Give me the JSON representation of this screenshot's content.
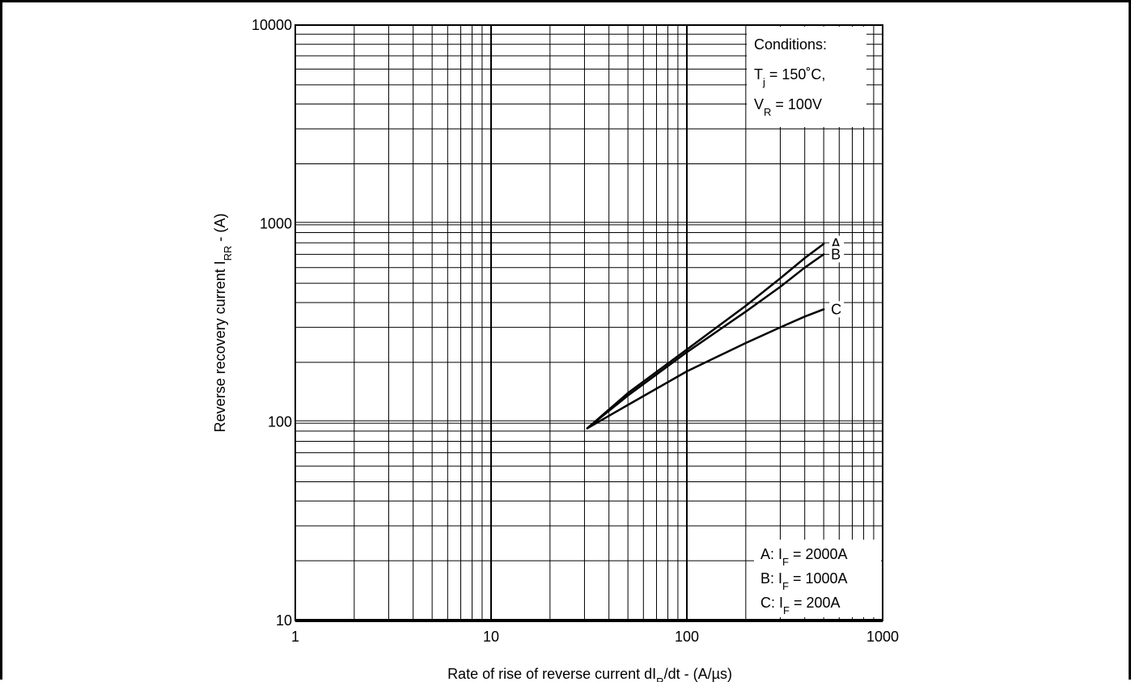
{
  "chart_data": {
    "type": "line",
    "x_scale": "log",
    "y_scale": "log",
    "xlim": [
      1,
      1000
    ],
    "ylim": [
      10,
      10000
    ],
    "grid": true,
    "xlabel": {
      "main": "Rate of rise of reverse current dI",
      "sub": "R",
      "suffix": "/dt - (A/µs)"
    },
    "ylabel": {
      "main": "Reverse recovery current I",
      "sub": "RR",
      "suffix": " - (A)"
    },
    "x_ticks": [
      {
        "value": 1,
        "label": "1"
      },
      {
        "value": 10,
        "label": "10"
      },
      {
        "value": 100,
        "label": "100"
      },
      {
        "value": 1000,
        "label": "1000"
      }
    ],
    "y_ticks": [
      {
        "value": 10,
        "label": "10"
      },
      {
        "value": 100,
        "label": "100"
      },
      {
        "value": 1000,
        "label": "1000"
      },
      {
        "value": 10000,
        "label": "10000"
      }
    ],
    "conditions": [
      {
        "main": "Conditions:",
        "sub": "",
        "suffix": ""
      },
      {
        "main": "T",
        "sub": "j",
        "suffix": " = 150˚C,"
      },
      {
        "main": "V",
        "sub": "R",
        "suffix": " = 100V"
      }
    ],
    "legend": [
      {
        "main": "A: I",
        "sub": "F",
        "suffix": " = 2000A"
      },
      {
        "main": "B: I",
        "sub": "F",
        "suffix": " = 1000A"
      },
      {
        "main": "C: I",
        "sub": "F",
        "suffix": " = 200A"
      }
    ],
    "legend_position": "bottom-right",
    "conditions_position": "top-right",
    "series": [
      {
        "name": "A",
        "color": "#000000",
        "x": [
          31,
          50,
          100,
          200,
          300,
          400,
          500
        ],
        "y": [
          93,
          140,
          232,
          385,
          530,
          670,
          790
        ]
      },
      {
        "name": "B",
        "color": "#000000",
        "x": [
          31,
          50,
          100,
          200,
          300,
          400,
          500
        ],
        "y": [
          93,
          136,
          225,
          360,
          480,
          600,
          700
        ]
      },
      {
        "name": "C",
        "color": "#000000",
        "x": [
          31,
          50,
          100,
          200,
          300,
          400,
          500
        ],
        "y": [
          93,
          122,
          180,
          250,
          300,
          340,
          370
        ]
      }
    ]
  }
}
